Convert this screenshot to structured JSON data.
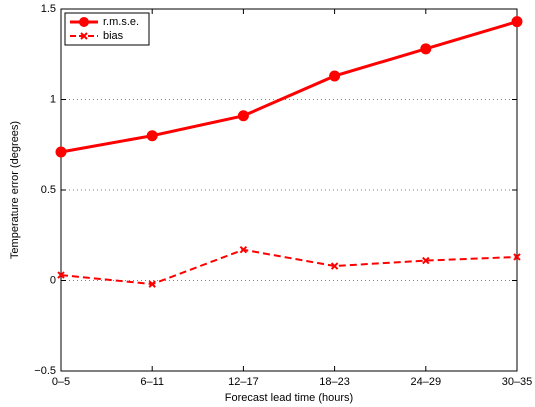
{
  "chart_data": {
    "type": "line",
    "xlabel": "Forecast lead time (hours)",
    "ylabel": "Temperature error (degrees)",
    "categories": [
      "0–5",
      "6–11",
      "12–17",
      "18–23",
      "24–29",
      "30–35"
    ],
    "series": [
      {
        "name": "r.m.s.e.",
        "color": "#ff0000",
        "marker": "circle",
        "dash": "solid",
        "values": [
          0.71,
          0.8,
          0.91,
          1.13,
          1.28,
          1.43
        ]
      },
      {
        "name": "bias",
        "color": "#ff0000",
        "marker": "x",
        "dash": "dashed",
        "values": [
          0.03,
          -0.02,
          0.17,
          0.08,
          0.11,
          0.13
        ]
      }
    ],
    "ylim": [
      -0.5,
      1.5
    ],
    "yticks": [
      {
        "value": -0.5,
        "label": "−0.5"
      },
      0,
      0.5,
      1,
      1.5
    ],
    "grid": true,
    "legend": "upper-left"
  }
}
